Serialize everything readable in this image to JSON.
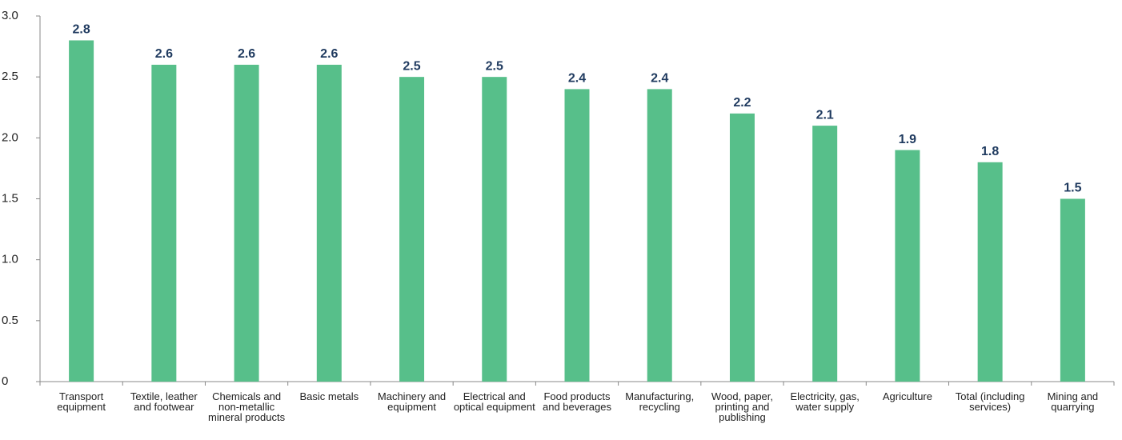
{
  "chart_data": {
    "type": "bar",
    "categories": [
      "Transport equipment",
      "Textile, leather and footwear",
      "Chemicals and non-metallic mineral products",
      "Basic metals",
      "Machinery and equipment",
      "Electrical and optical equipment",
      "Food products and beverages",
      "Manufacturing, recycling",
      "Wood, paper, printing and publishing",
      "Electricity, gas, water supply",
      "Agriculture",
      "Total (including services)",
      "Mining and quarrying"
    ],
    "values": [
      2.8,
      2.6,
      2.6,
      2.6,
      2.5,
      2.5,
      2.4,
      2.4,
      2.2,
      2.1,
      1.9,
      1.8,
      1.5
    ],
    "color": "#57bf8a",
    "ylim": [
      0,
      3
    ],
    "yticks": [
      0,
      0.5,
      {
        "value": 1,
        "label": "1.0"
      },
      1.5,
      {
        "value": 2,
        "label": "2.0"
      },
      2.5,
      {
        "value": 3,
        "label": "3.0"
      }
    ],
    "grid": false
  }
}
